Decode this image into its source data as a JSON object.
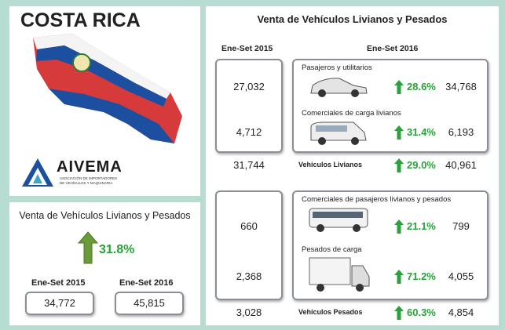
{
  "brand": {
    "country": "COSTA RICA",
    "logo": "AIVEMA",
    "logo_subtitle": [
      "ASOCIACIÓN DE IMPORTADORES",
      "DE VEHÍCULOS Y MAQUINARIA"
    ]
  },
  "summary": {
    "title": "Venta de Vehículos Livianos y Pesados",
    "change": "31.8%",
    "periods": [
      {
        "label": "Ene-Set 2015",
        "value": "34,772"
      },
      {
        "label": "Ene-Set 2016",
        "value": "45,815"
      }
    ]
  },
  "detail": {
    "title": "Venta de Vehículos Livianos y Pesados",
    "period_2015": "Ene-Set 2015",
    "period_2016": "Ene-Set 2016",
    "groups": [
      {
        "rows": [
          {
            "name": "Pasajeros y utilitarios",
            "value_2015": "27,032",
            "change": "28.6%",
            "value_2016": "34,768"
          },
          {
            "name": "Comerciales de carga livianos",
            "value_2015": "4,712",
            "change": "31.4%",
            "value_2016": "6,193"
          }
        ],
        "total": {
          "name": "Vehículos Livianos",
          "value_2015": "31,744",
          "change": "29.0%",
          "value_2016": "40,961"
        }
      },
      {
        "rows": [
          {
            "name": "Comerciales de pasajeros livianos y pesados",
            "value_2015": "660",
            "change": "21.1%",
            "value_2016": "799"
          },
          {
            "name": "Pesados de carga",
            "value_2015": "2,368",
            "change": "71.2%",
            "value_2016": "4,055"
          }
        ],
        "total": {
          "name": "Vehículos Pesados",
          "value_2015": "3,028",
          "change": "60.3%",
          "value_2016": "4,854"
        }
      }
    ]
  }
}
